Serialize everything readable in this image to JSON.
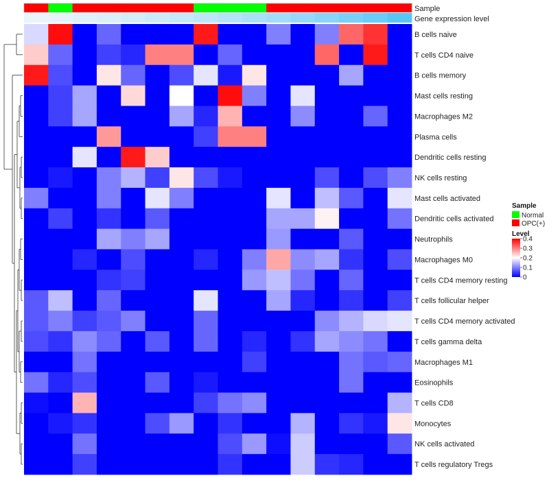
{
  "chart_data": {
    "type": "heatmap",
    "tracks": {
      "sample_label": "Sample",
      "expression_label": "Gene expression level",
      "sample_groups": [
        "OPC(+)",
        "Normal",
        "OPC(+)",
        "OPC(+)",
        "OPC(+)",
        "OPC(+)",
        "OPC(+)",
        "Normal",
        "Normal",
        "Normal",
        "OPC(+)",
        "OPC(+)",
        "OPC(+)",
        "OPC(+)",
        "OPC(+)",
        "OPC(+)"
      ],
      "expression_values": [
        0.05,
        0.08,
        0.12,
        0.16,
        0.2,
        0.24,
        0.28,
        0.33,
        0.38,
        0.44,
        0.5,
        0.58,
        0.66,
        0.75,
        0.85,
        0.95
      ]
    },
    "rows": [
      "B cells naive",
      "T cells CD4 naive",
      "B cells memory",
      "Mast cells resting",
      "Macrophages M2",
      "Plasma cells",
      "Dendritic cells resting",
      "NK cells resting",
      "Mast cells activated",
      "Dendritic cells activated",
      "Neutrophils",
      "Macrophages M0",
      "T cells CD4 memory resting",
      "T cells follicular helper",
      "T cells CD4 memory activated",
      "T cells gamma delta",
      "Macrophages M1",
      "Eosinophils",
      "T cells CD8",
      "Monocytes",
      "NK cells activated",
      "T cells regulatory  Tregs"
    ],
    "values": [
      [
        0.17,
        0.39,
        0.0,
        0.08,
        0.0,
        0.0,
        0.0,
        0.38,
        0.0,
        0.0,
        0.1,
        0.0,
        0.1,
        0.32,
        0.36,
        0.0
      ],
      [
        0.24,
        0.08,
        0.0,
        0.05,
        0.03,
        0.3,
        0.3,
        0.0,
        0.08,
        0.0,
        0.0,
        0.0,
        0.32,
        0.0,
        0.38,
        0.0
      ],
      [
        0.38,
        0.06,
        0.0,
        0.22,
        0.08,
        0.0,
        0.06,
        0.18,
        0.02,
        0.22,
        0.0,
        0.0,
        0.0,
        0.13,
        0.0,
        0.0
      ],
      [
        0.0,
        0.05,
        0.13,
        0.0,
        0.23,
        0.0,
        0.2,
        0.0,
        0.39,
        0.1,
        0.0,
        0.18,
        0.0,
        0.0,
        0.0,
        0.0
      ],
      [
        0.0,
        0.05,
        0.13,
        0.0,
        0.0,
        0.0,
        0.13,
        0.03,
        0.26,
        0.0,
        0.0,
        0.11,
        0.0,
        0.0,
        0.08,
        0.0
      ],
      [
        0.0,
        0.0,
        0.0,
        0.28,
        0.0,
        0.0,
        0.0,
        0.05,
        0.3,
        0.3,
        0.0,
        0.0,
        0.0,
        0.0,
        0.0,
        0.0
      ],
      [
        0.0,
        0.0,
        0.18,
        0.0,
        0.38,
        0.24,
        0.0,
        0.0,
        0.0,
        0.0,
        0.0,
        0.0,
        0.0,
        0.0,
        0.0,
        0.0
      ],
      [
        0.0,
        0.02,
        0.0,
        0.1,
        0.14,
        0.05,
        0.22,
        0.06,
        0.02,
        0.0,
        0.0,
        0.0,
        0.06,
        0.0,
        0.06,
        0.1
      ],
      [
        0.1,
        0.0,
        0.0,
        0.1,
        0.0,
        0.18,
        0.1,
        0.0,
        0.0,
        0.0,
        0.18,
        0.0,
        0.15,
        0.07,
        0.0,
        0.18
      ],
      [
        0.0,
        0.05,
        0.0,
        0.04,
        0.0,
        0.07,
        0.0,
        0.0,
        0.0,
        0.0,
        0.13,
        0.13,
        0.21,
        0.0,
        0.0,
        0.09
      ],
      [
        0.0,
        0.0,
        0.0,
        0.13,
        0.1,
        0.13,
        0.0,
        0.0,
        0.0,
        0.0,
        0.12,
        0.0,
        0.0,
        0.07,
        0.0,
        0.0
      ],
      [
        0.0,
        0.0,
        0.03,
        0.0,
        0.06,
        0.0,
        0.0,
        0.03,
        0.0,
        0.1,
        0.27,
        0.11,
        0.13,
        0.04,
        0.0,
        0.06
      ],
      [
        0.0,
        0.0,
        0.0,
        0.04,
        0.05,
        0.0,
        0.0,
        0.0,
        0.0,
        0.12,
        0.15,
        0.09,
        0.0,
        0.08,
        0.0,
        0.0
      ],
      [
        0.07,
        0.15,
        0.0,
        0.08,
        0.0,
        0.0,
        0.0,
        0.18,
        0.0,
        0.0,
        0.13,
        0.03,
        0.0,
        0.04,
        0.0,
        0.05
      ],
      [
        0.07,
        0.1,
        0.05,
        0.07,
        0.1,
        0.0,
        0.0,
        0.08,
        0.0,
        0.0,
        0.0,
        0.0,
        0.11,
        0.14,
        0.17,
        0.18
      ],
      [
        0.06,
        0.04,
        0.11,
        0.08,
        0.0,
        0.07,
        0.0,
        0.08,
        0.0,
        0.03,
        0.0,
        0.04,
        0.13,
        0.11,
        0.09,
        0.0
      ],
      [
        0.0,
        0.0,
        0.09,
        0.0,
        0.0,
        0.0,
        0.0,
        0.0,
        0.0,
        0.05,
        0.0,
        0.0,
        0.0,
        0.09,
        0.07,
        0.08
      ],
      [
        0.09,
        0.03,
        0.06,
        0.0,
        0.0,
        0.07,
        0.0,
        0.02,
        0.0,
        0.0,
        0.0,
        0.0,
        0.0,
        0.09,
        0.0,
        0.0
      ],
      [
        0.01,
        0.0,
        0.26,
        0.0,
        0.0,
        0.0,
        0.0,
        0.05,
        0.09,
        0.11,
        0.0,
        0.0,
        0.0,
        0.0,
        0.0,
        0.14
      ],
      [
        0.0,
        0.02,
        0.04,
        0.0,
        0.0,
        0.06,
        0.12,
        0.0,
        0.04,
        0.0,
        0.0,
        0.14,
        0.0,
        0.04,
        0.02,
        0.22
      ],
      [
        0.0,
        0.0,
        0.09,
        0.0,
        0.0,
        0.0,
        0.0,
        0.0,
        0.06,
        0.12,
        0.01,
        0.16,
        0.0,
        0.0,
        0.0,
        0.07
      ],
      [
        0.0,
        0.0,
        0.05,
        0.0,
        0.0,
        0.0,
        0.0,
        0.0,
        0.04,
        0.0,
        0.0,
        0.16,
        0.04,
        0.03,
        0.0,
        0.0
      ]
    ],
    "legend": {
      "sample_title": "Sample",
      "sample_items": [
        {
          "label": "Normal",
          "color": "#00ff00"
        },
        {
          "label": "OPC(+)",
          "color": "#ff0000"
        }
      ],
      "level_title": "Level",
      "level_ticks": [
        0,
        0.1,
        0.2,
        0.3,
        0.4
      ],
      "level_tick_labels": [
        "0",
        "0.1",
        "0.2",
        "0.3",
        "0.4"
      ],
      "placement": "right"
    },
    "color_scale": {
      "low": "#0000ff",
      "mid": "#ffffff",
      "high": "#ff0000",
      "min": 0,
      "mid_value": 0.2,
      "max": 0.4
    },
    "expression_color_scale": {
      "low": "#f3f7fb",
      "high": "#4fc3f7"
    },
    "dendrogram": "row clustering tree on left"
  }
}
